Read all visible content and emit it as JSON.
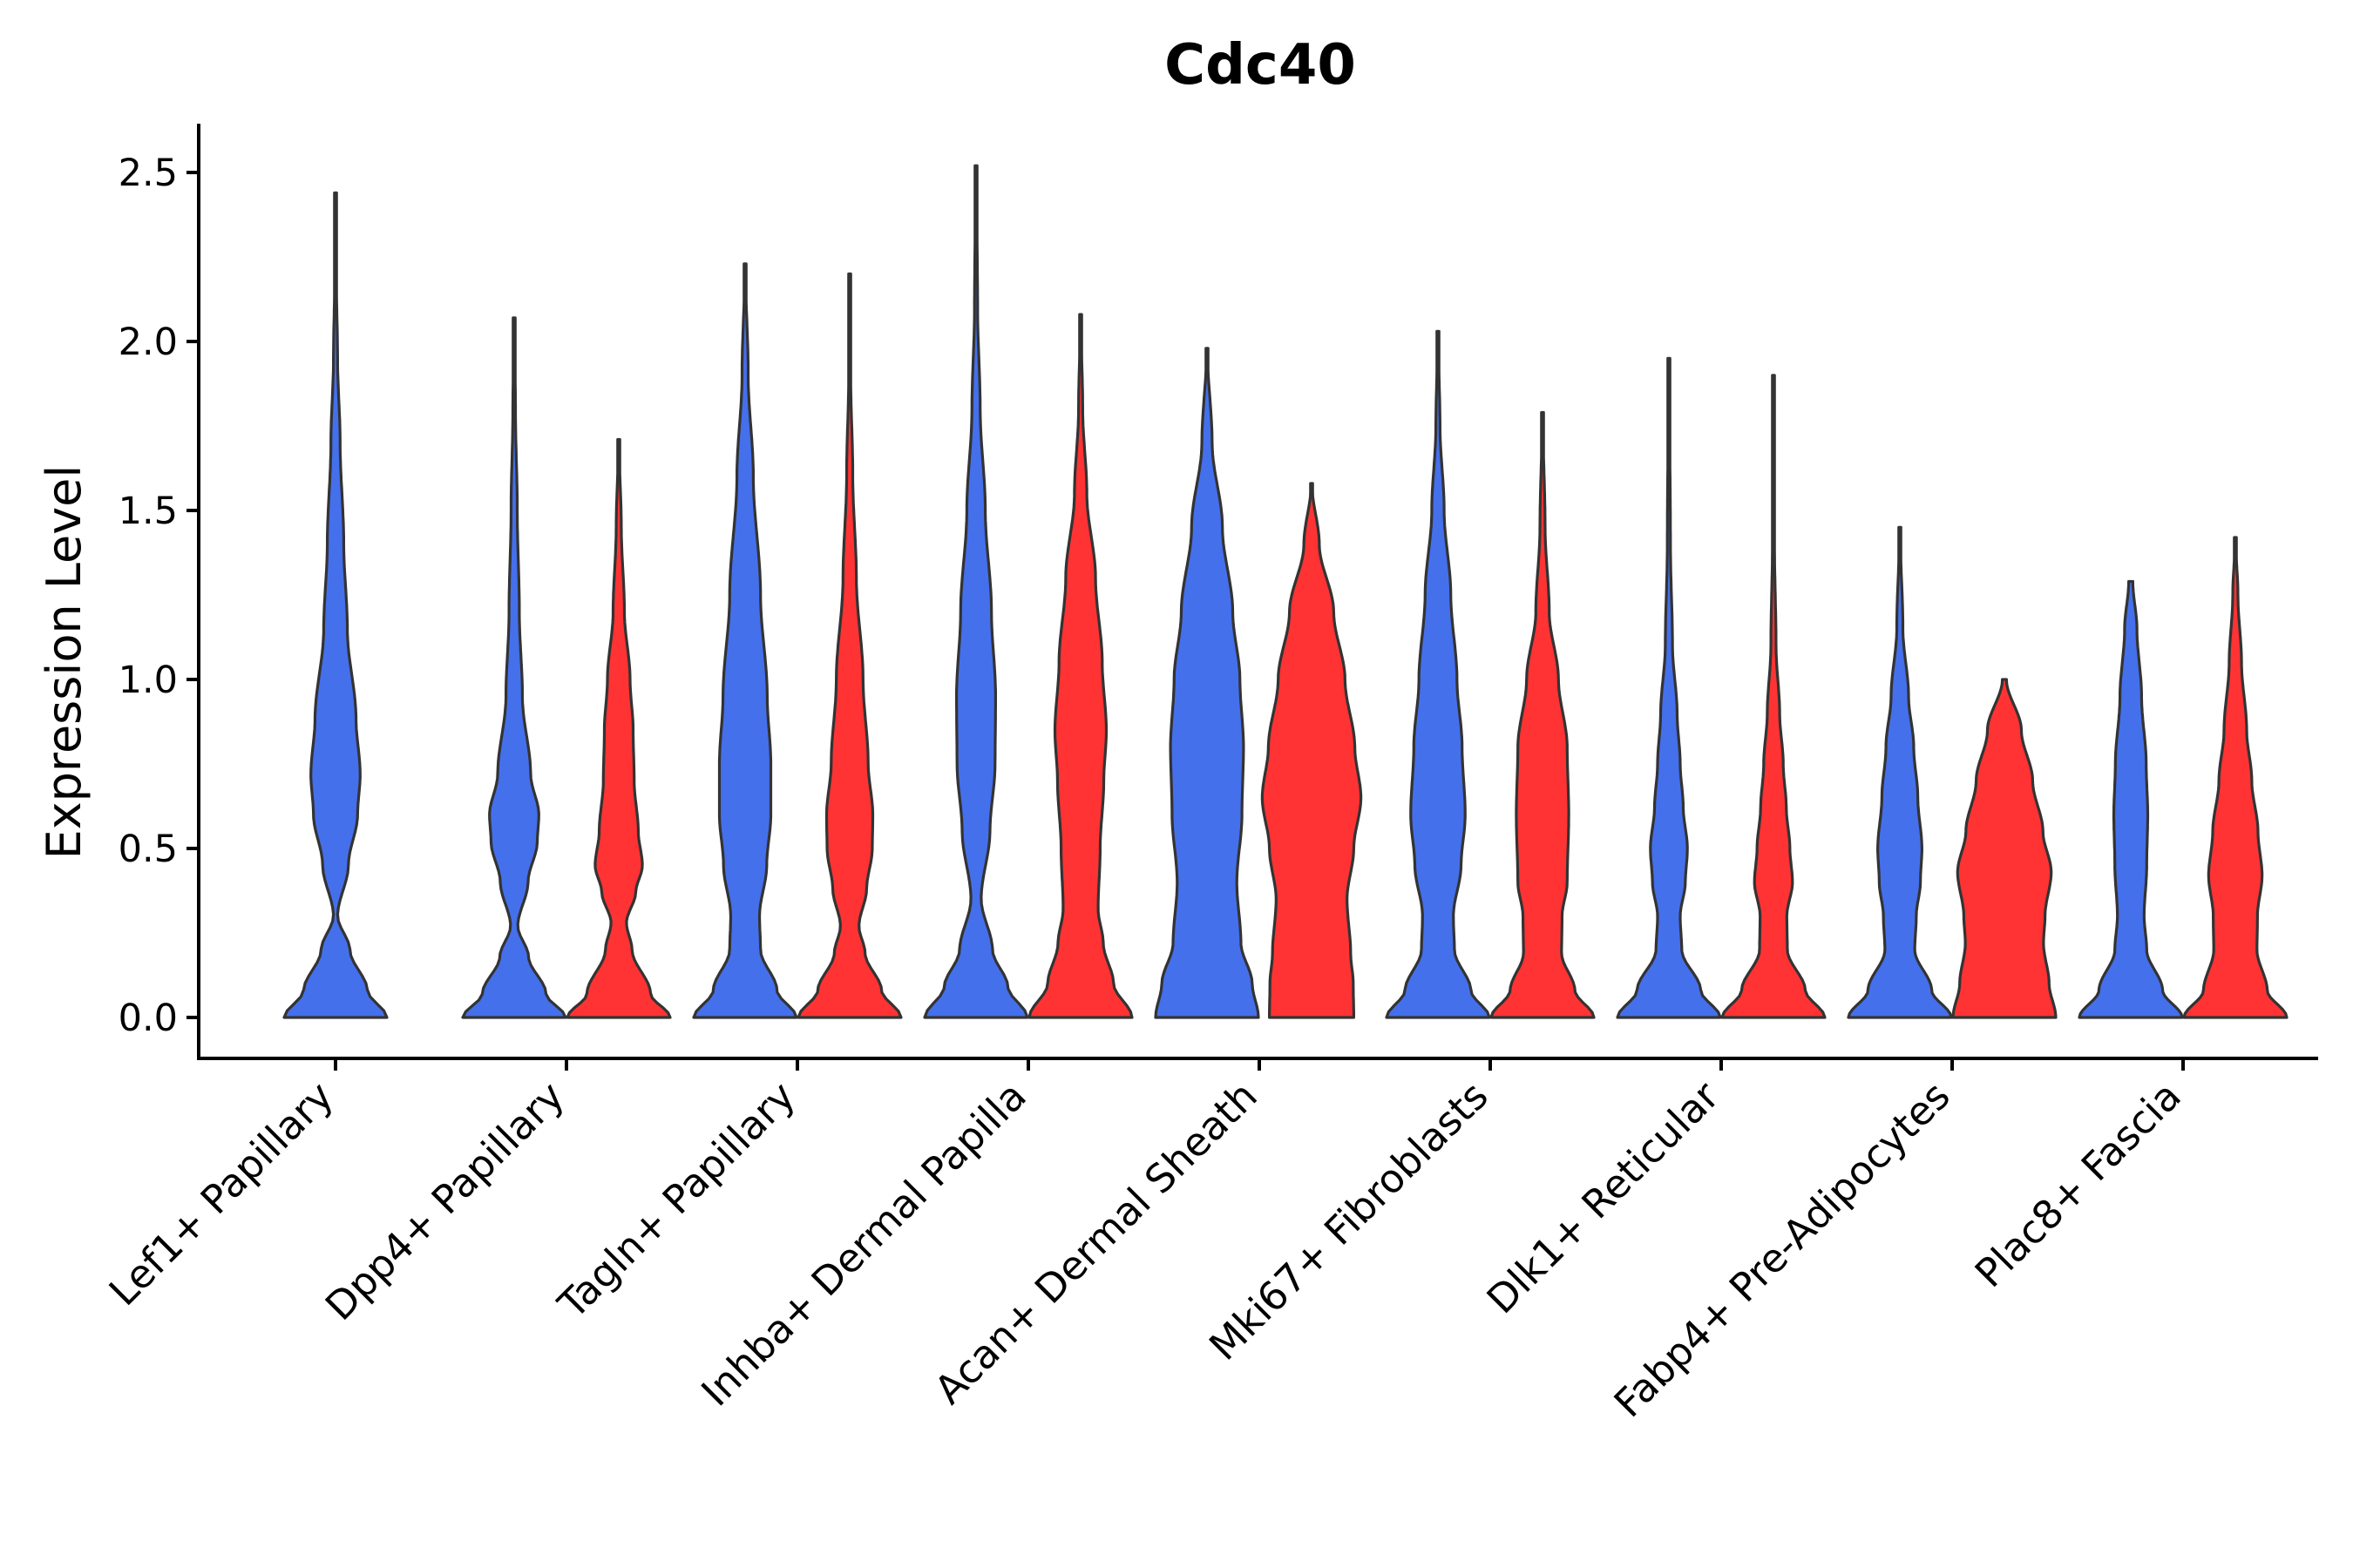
{
  "chart_data": {
    "type": "violin",
    "title": "Cdc40",
    "xlabel": "",
    "ylabel": "Expression Level",
    "ylim": [
      -0.125,
      2.65
    ],
    "yticks": [
      "0.0",
      "0.5",
      "1.0",
      "1.5",
      "2.0",
      "2.5"
    ],
    "ytick_values": [
      0,
      0.5,
      1.0,
      1.5,
      2.0,
      2.5
    ],
    "grid": false,
    "colors": {
      "blue": "#4570ec",
      "red": "#ff3333"
    },
    "categories": [
      "Lef1+ Papillary",
      "Dpp4+ Papillary",
      "Tagln+ Papillary",
      "Inhba+ Dermal Papilla",
      "Acan+ Dermal Sheath",
      "Mki67+ Fibroblasts",
      "Dlk1+ Reticular",
      "Fabp4+ Pre-Adipocytes",
      "Plac8+ Fascia"
    ],
    "violins": [
      {
        "category": "Lef1+ Papillary",
        "split": "blue",
        "max": 2.44,
        "width_profile": [
          [
            0,
            1
          ],
          [
            0.08,
            0.62
          ],
          [
            0.2,
            0.28
          ],
          [
            0.3,
            0.04
          ],
          [
            0.45,
            0.25
          ],
          [
            0.6,
            0.43
          ],
          [
            0.72,
            0.48
          ],
          [
            0.88,
            0.4
          ],
          [
            1.15,
            0.23
          ],
          [
            1.4,
            0.16
          ],
          [
            1.7,
            0.09
          ],
          [
            1.95,
            0.04
          ],
          [
            2.2,
            0.015
          ],
          [
            2.44,
            0.005
          ]
        ]
      },
      {
        "category": "Dpp4+ Papillary",
        "split": "blue",
        "max": 2.07,
        "width_profile": [
          [
            0,
            1
          ],
          [
            0.07,
            0.62
          ],
          [
            0.18,
            0.28
          ],
          [
            0.27,
            0.07
          ],
          [
            0.4,
            0.27
          ],
          [
            0.52,
            0.45
          ],
          [
            0.6,
            0.48
          ],
          [
            0.72,
            0.32
          ],
          [
            0.95,
            0.16
          ],
          [
            1.2,
            0.1
          ],
          [
            1.5,
            0.06
          ],
          [
            1.8,
            0.025
          ],
          [
            2.07,
            0.005
          ]
        ]
      },
      {
        "category": "Dpp4+ Papillary",
        "split": "red",
        "max": 1.71,
        "width_profile": [
          [
            0,
            1
          ],
          [
            0.07,
            0.62
          ],
          [
            0.2,
            0.26
          ],
          [
            0.28,
            0.15
          ],
          [
            0.37,
            0.33
          ],
          [
            0.45,
            0.46
          ],
          [
            0.55,
            0.38
          ],
          [
            0.7,
            0.3
          ],
          [
            0.85,
            0.28
          ],
          [
            1.0,
            0.22
          ],
          [
            1.2,
            0.11
          ],
          [
            1.45,
            0.05
          ],
          [
            1.71,
            0.005
          ]
        ]
      },
      {
        "category": "Tagln+ Papillary",
        "split": "blue",
        "max": 2.23,
        "width_profile": [
          [
            0,
            1
          ],
          [
            0.08,
            0.62
          ],
          [
            0.2,
            0.3
          ],
          [
            0.3,
            0.28
          ],
          [
            0.45,
            0.42
          ],
          [
            0.6,
            0.5
          ],
          [
            0.75,
            0.5
          ],
          [
            0.95,
            0.43
          ],
          [
            1.25,
            0.3
          ],
          [
            1.6,
            0.16
          ],
          [
            1.9,
            0.06
          ],
          [
            2.23,
            0.005
          ]
        ]
      },
      {
        "category": "Tagln+ Papillary",
        "split": "red",
        "max": 2.2,
        "width_profile": [
          [
            0,
            1
          ],
          [
            0.08,
            0.62
          ],
          [
            0.19,
            0.3
          ],
          [
            0.27,
            0.18
          ],
          [
            0.38,
            0.33
          ],
          [
            0.5,
            0.44
          ],
          [
            0.6,
            0.45
          ],
          [
            0.75,
            0.36
          ],
          [
            1.0,
            0.26
          ],
          [
            1.3,
            0.13
          ],
          [
            1.6,
            0.06
          ],
          [
            1.9,
            0.02
          ],
          [
            2.2,
            0.005
          ]
        ]
      },
      {
        "category": "Inhba+ Dermal Papilla",
        "split": "blue",
        "max": 2.52,
        "width_profile": [
          [
            0,
            1
          ],
          [
            0.09,
            0.62
          ],
          [
            0.2,
            0.32
          ],
          [
            0.35,
            0.1
          ],
          [
            0.55,
            0.27
          ],
          [
            0.75,
            0.37
          ],
          [
            0.95,
            0.38
          ],
          [
            1.2,
            0.3
          ],
          [
            1.5,
            0.18
          ],
          [
            1.8,
            0.08
          ],
          [
            2.1,
            0.03
          ],
          [
            2.52,
            0.005
          ]
        ]
      },
      {
        "category": "Inhba+ Dermal Papilla",
        "split": "red",
        "max": 2.08,
        "width_profile": [
          [
            0,
            1
          ],
          [
            0.1,
            0.64
          ],
          [
            0.22,
            0.44
          ],
          [
            0.32,
            0.34
          ],
          [
            0.5,
            0.38
          ],
          [
            0.7,
            0.45
          ],
          [
            0.85,
            0.5
          ],
          [
            1.05,
            0.42
          ],
          [
            1.3,
            0.29
          ],
          [
            1.55,
            0.12
          ],
          [
            1.8,
            0.04
          ],
          [
            2.08,
            0.005
          ]
        ]
      },
      {
        "category": "Acan+ Dermal Sheath",
        "split": "blue",
        "max": 1.98,
        "width_profile": [
          [
            0,
            1
          ],
          [
            0.1,
            0.88
          ],
          [
            0.22,
            0.66
          ],
          [
            0.4,
            0.58
          ],
          [
            0.6,
            0.68
          ],
          [
            0.8,
            0.71
          ],
          [
            1.0,
            0.64
          ],
          [
            1.2,
            0.5
          ],
          [
            1.45,
            0.3
          ],
          [
            1.7,
            0.1
          ],
          [
            1.98,
            0.005
          ]
        ]
      },
      {
        "category": "Acan+ Dermal Sheath",
        "split": "red",
        "max": 1.58,
        "width_profile": [
          [
            0,
            0.82
          ],
          [
            0.1,
            0.81
          ],
          [
            0.19,
            0.76
          ],
          [
            0.35,
            0.69
          ],
          [
            0.5,
            0.82
          ],
          [
            0.65,
            0.96
          ],
          [
            0.8,
            0.84
          ],
          [
            1.0,
            0.65
          ],
          [
            1.2,
            0.43
          ],
          [
            1.4,
            0.15
          ],
          [
            1.58,
            0.005
          ]
        ]
      },
      {
        "category": "Mki67+ Fibroblasts",
        "split": "blue",
        "max": 2.03,
        "width_profile": [
          [
            0,
            1
          ],
          [
            0.08,
            0.64
          ],
          [
            0.2,
            0.32
          ],
          [
            0.3,
            0.3
          ],
          [
            0.45,
            0.45
          ],
          [
            0.6,
            0.53
          ],
          [
            0.8,
            0.47
          ],
          [
            1.0,
            0.37
          ],
          [
            1.25,
            0.25
          ],
          [
            1.5,
            0.12
          ],
          [
            1.75,
            0.04
          ],
          [
            2.03,
            0.005
          ]
        ]
      },
      {
        "category": "Mki67+ Fibroblasts",
        "split": "red",
        "max": 1.79,
        "width_profile": [
          [
            0,
            1
          ],
          [
            0.08,
            0.63
          ],
          [
            0.19,
            0.37
          ],
          [
            0.3,
            0.38
          ],
          [
            0.4,
            0.48
          ],
          [
            0.6,
            0.51
          ],
          [
            0.8,
            0.48
          ],
          [
            1.0,
            0.31
          ],
          [
            1.2,
            0.13
          ],
          [
            1.45,
            0.05
          ],
          [
            1.79,
            0.005
          ]
        ]
      },
      {
        "category": "Dlk1+ Reticular",
        "split": "blue",
        "max": 1.95,
        "width_profile": [
          [
            0,
            1
          ],
          [
            0.08,
            0.62
          ],
          [
            0.2,
            0.25
          ],
          [
            0.3,
            0.22
          ],
          [
            0.4,
            0.32
          ],
          [
            0.5,
            0.36
          ],
          [
            0.62,
            0.28
          ],
          [
            0.75,
            0.22
          ],
          [
            0.9,
            0.16
          ],
          [
            1.1,
            0.07
          ],
          [
            1.4,
            0.03
          ],
          [
            1.95,
            0.005
          ]
        ]
      },
      {
        "category": "Dlk1+ Reticular",
        "split": "red",
        "max": 1.9,
        "width_profile": [
          [
            0,
            1
          ],
          [
            0.08,
            0.62
          ],
          [
            0.2,
            0.27
          ],
          [
            0.3,
            0.26
          ],
          [
            0.4,
            0.37
          ],
          [
            0.5,
            0.32
          ],
          [
            0.62,
            0.25
          ],
          [
            0.75,
            0.19
          ],
          [
            0.9,
            0.12
          ],
          [
            1.1,
            0.05
          ],
          [
            1.4,
            0.02
          ],
          [
            1.9,
            0.005
          ]
        ]
      },
      {
        "category": "Fabp4+ Pre-Adipocytes",
        "split": "blue",
        "max": 1.45,
        "width_profile": [
          [
            0,
            1
          ],
          [
            0.08,
            0.62
          ],
          [
            0.2,
            0.29
          ],
          [
            0.3,
            0.32
          ],
          [
            0.4,
            0.4
          ],
          [
            0.5,
            0.43
          ],
          [
            0.65,
            0.35
          ],
          [
            0.8,
            0.27
          ],
          [
            0.95,
            0.17
          ],
          [
            1.15,
            0.06
          ],
          [
            1.45,
            0.005
          ]
        ]
      },
      {
        "category": "Fabp4+ Pre-Adipocytes",
        "split": "red",
        "max": 1.0,
        "width_profile": [
          [
            0,
            1
          ],
          [
            0.1,
            0.87
          ],
          [
            0.22,
            0.76
          ],
          [
            0.3,
            0.79
          ],
          [
            0.43,
            0.91
          ],
          [
            0.55,
            0.75
          ],
          [
            0.7,
            0.55
          ],
          [
            0.85,
            0.33
          ],
          [
            1.0,
            0.04
          ]
        ]
      },
      {
        "category": "Plac8+ Fascia",
        "split": "blue",
        "max": 1.29,
        "width_profile": [
          [
            0,
            1
          ],
          [
            0.08,
            0.62
          ],
          [
            0.2,
            0.31
          ],
          [
            0.3,
            0.26
          ],
          [
            0.45,
            0.31
          ],
          [
            0.6,
            0.33
          ],
          [
            0.75,
            0.3
          ],
          [
            0.95,
            0.21
          ],
          [
            1.15,
            0.12
          ],
          [
            1.29,
            0.04
          ]
        ]
      },
      {
        "category": "Plac8+ Fascia",
        "split": "red",
        "max": 1.42,
        "width_profile": [
          [
            0,
            1
          ],
          [
            0.08,
            0.62
          ],
          [
            0.2,
            0.42
          ],
          [
            0.3,
            0.43
          ],
          [
            0.42,
            0.52
          ],
          [
            0.55,
            0.44
          ],
          [
            0.7,
            0.32
          ],
          [
            0.85,
            0.22
          ],
          [
            1.05,
            0.12
          ],
          [
            1.25,
            0.05
          ],
          [
            1.42,
            0.005
          ]
        ]
      }
    ]
  }
}
